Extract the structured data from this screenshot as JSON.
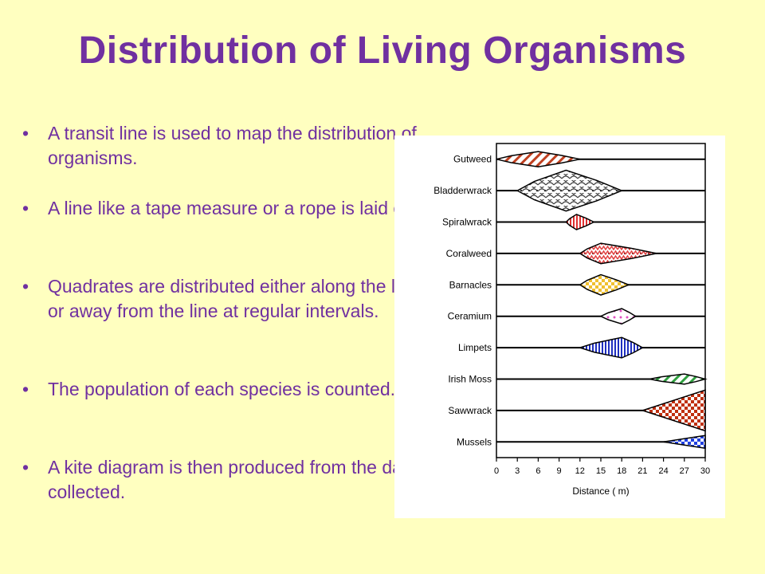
{
  "slide": {
    "title": "Distribution of Living Organisms",
    "bullet_char": "•",
    "bullets": [
      "A transit line is used to map the distribution of organisms.",
      "A line like a tape measure or a rope is laid out.",
      "Quadrates are distributed either along the line or away from the line at regular intervals.",
      "The population of each species is counted.",
      "A kite diagram is then produced from the data collected."
    ]
  },
  "chart_data": {
    "type": "kite",
    "xlabel": "Distance ( m)",
    "xlim": [
      0,
      30
    ],
    "xticks": [
      0,
      3,
      6,
      9,
      12,
      15,
      18,
      21,
      24,
      27,
      30
    ],
    "series": [
      {
        "name": "Gutweed",
        "color": "#c04020",
        "pattern": "diagonal",
        "extent": [
          0,
          12
        ],
        "peak": 6,
        "width": 3
      },
      {
        "name": "Bladderwrack",
        "color": "#404040",
        "pattern": "scales",
        "extent": [
          3,
          18
        ],
        "peak": 10,
        "width": 8
      },
      {
        "name": "Spiralwrack",
        "color": "#e03030",
        "pattern": "vertical",
        "extent": [
          10,
          14
        ],
        "peak": 11.5,
        "width": 3
      },
      {
        "name": "Coralweed",
        "color": "#e04040",
        "pattern": "zigzag",
        "extent": [
          12,
          23
        ],
        "peak": 15,
        "width": 4
      },
      {
        "name": "Barnacles",
        "color": "#f0c030",
        "pattern": "check",
        "extent": [
          12,
          19
        ],
        "peak": 15,
        "width": 4
      },
      {
        "name": "Ceramium",
        "color": "#e050c0",
        "pattern": "dots",
        "extent": [
          15,
          20
        ],
        "peak": 18,
        "width": 3
      },
      {
        "name": "Limpets",
        "color": "#2030c0",
        "pattern": "vertical",
        "extent": [
          12,
          21
        ],
        "peak": 18,
        "width": 4
      },
      {
        "name": "Irish Moss",
        "color": "#30a040",
        "pattern": "diagonal",
        "extent": [
          22,
          30
        ],
        "peak": 27,
        "width": 2
      },
      {
        "name": "Sawwrack",
        "color": "#c03010",
        "pattern": "check",
        "extent": [
          21,
          30
        ],
        "peak": 30,
        "width": 8
      },
      {
        "name": "Mussels",
        "color": "#2040e0",
        "pattern": "check",
        "extent": [
          24,
          30
        ],
        "peak": 30,
        "width": 2.5
      }
    ]
  }
}
